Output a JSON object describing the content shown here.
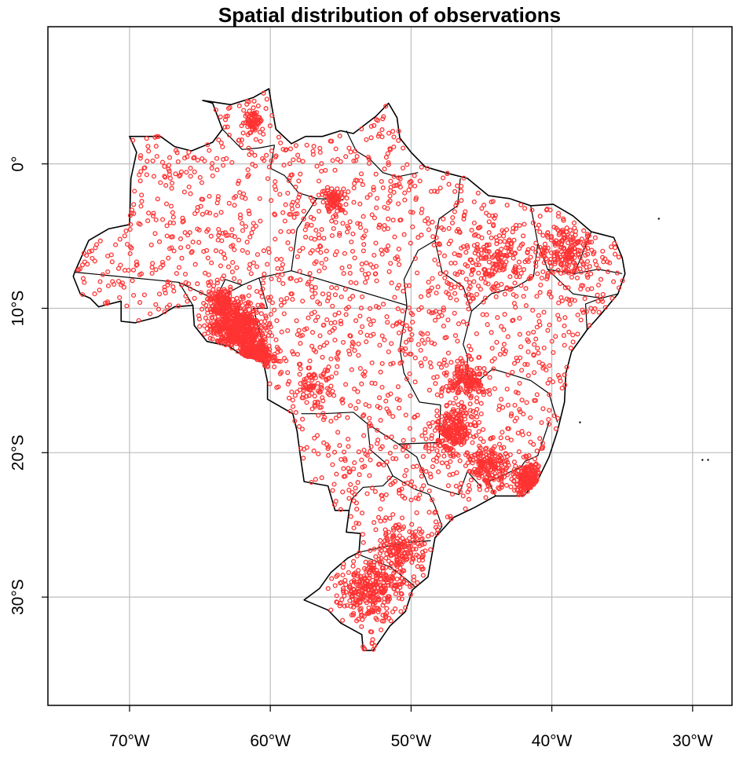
{
  "title": "Spatial distribution of observations",
  "x_ticks": [
    {
      "lon": -70,
      "label": "70°W"
    },
    {
      "lon": -60,
      "label": "60°W"
    },
    {
      "lon": -50,
      "label": "50°W"
    },
    {
      "lon": -40,
      "label": "40°W"
    },
    {
      "lon": -30,
      "label": "30°W"
    }
  ],
  "y_ticks": [
    {
      "lat": 0,
      "label": "0°"
    },
    {
      "lat": -10,
      "label": "10°S"
    },
    {
      "lat": -20,
      "label": "20°S"
    },
    {
      "lat": -30,
      "label": "30°S"
    }
  ],
  "extent": {
    "lon_min": -75.8,
    "lon_max": -27.2,
    "lat_min": -37.5,
    "lat_max": 9.5
  },
  "colors": {
    "points": "#ff3333",
    "border": "#000000",
    "grid": "#bebebe"
  },
  "grid": true,
  "boundary_lonlat": [
    [
      -73.9,
      -7.5
    ],
    [
      -72.9,
      -5.3
    ],
    [
      -71.5,
      -4.5
    ],
    [
      -70.0,
      -4.2
    ],
    [
      -69.9,
      -1.0
    ],
    [
      -69.5,
      0.8
    ],
    [
      -70.0,
      1.9
    ],
    [
      -67.8,
      1.9
    ],
    [
      -66.8,
      1.2
    ],
    [
      -65.6,
      0.9
    ],
    [
      -64.1,
      1.5
    ],
    [
      -63.4,
      2.4
    ],
    [
      -64.1,
      4.2
    ],
    [
      -64.8,
      4.4
    ],
    [
      -62.8,
      4.1
    ],
    [
      -61.2,
      4.6
    ],
    [
      -60.1,
      5.2
    ],
    [
      -59.9,
      4.0
    ],
    [
      -59.6,
      2.4
    ],
    [
      -58.5,
      1.4
    ],
    [
      -57.5,
      1.9
    ],
    [
      -56.3,
      1.9
    ],
    [
      -55.0,
      2.3
    ],
    [
      -54.1,
      2.1
    ],
    [
      -52.5,
      3.3
    ],
    [
      -51.6,
      4.2
    ],
    [
      -51.0,
      3.2
    ],
    [
      -50.8,
      1.8
    ],
    [
      -50.0,
      0.8
    ],
    [
      -49.0,
      -0.2
    ],
    [
      -47.6,
      -0.6
    ],
    [
      -46.0,
      -1.0
    ],
    [
      -44.5,
      -2.2
    ],
    [
      -43.0,
      -2.4
    ],
    [
      -41.5,
      -2.9
    ],
    [
      -39.9,
      -2.8
    ],
    [
      -38.5,
      -3.6
    ],
    [
      -37.2,
      -4.7
    ],
    [
      -35.6,
      -5.1
    ],
    [
      -35.0,
      -6.5
    ],
    [
      -34.8,
      -7.6
    ],
    [
      -35.3,
      -9.0
    ],
    [
      -36.5,
      -10.4
    ],
    [
      -37.5,
      -11.5
    ],
    [
      -38.6,
      -13.0
    ],
    [
      -39.0,
      -14.5
    ],
    [
      -39.1,
      -16.5
    ],
    [
      -39.6,
      -18.5
    ],
    [
      -40.2,
      -20.3
    ],
    [
      -41.0,
      -21.9
    ],
    [
      -42.0,
      -23.0
    ],
    [
      -44.0,
      -23.0
    ],
    [
      -45.5,
      -23.8
    ],
    [
      -47.0,
      -24.5
    ],
    [
      -48.3,
      -25.9
    ],
    [
      -48.6,
      -27.5
    ],
    [
      -48.8,
      -28.6
    ],
    [
      -49.9,
      -29.5
    ],
    [
      -50.4,
      -31.0
    ],
    [
      -51.5,
      -32.0
    ],
    [
      -52.7,
      -33.7
    ],
    [
      -53.4,
      -33.7
    ],
    [
      -53.5,
      -32.6
    ],
    [
      -55.0,
      -31.8
    ],
    [
      -55.9,
      -30.9
    ],
    [
      -57.6,
      -30.2
    ],
    [
      -56.5,
      -29.4
    ],
    [
      -55.7,
      -28.3
    ],
    [
      -54.5,
      -27.3
    ],
    [
      -53.7,
      -26.9
    ],
    [
      -53.6,
      -25.6
    ],
    [
      -54.6,
      -25.5
    ],
    [
      -54.4,
      -24.0
    ],
    [
      -55.4,
      -24.0
    ],
    [
      -55.9,
      -22.3
    ],
    [
      -57.6,
      -22.0
    ],
    [
      -57.9,
      -20.0
    ],
    [
      -58.1,
      -18.5
    ],
    [
      -58.4,
      -17.3
    ],
    [
      -60.2,
      -16.3
    ],
    [
      -60.2,
      -15.1
    ],
    [
      -60.5,
      -13.7
    ],
    [
      -61.9,
      -13.3
    ],
    [
      -63.0,
      -12.6
    ],
    [
      -64.5,
      -12.3
    ],
    [
      -65.4,
      -11.2
    ],
    [
      -65.5,
      -9.8
    ],
    [
      -66.8,
      -9.9
    ],
    [
      -68.0,
      -10.6
    ],
    [
      -69.6,
      -11.0
    ],
    [
      -70.6,
      -10.9
    ],
    [
      -70.6,
      -9.5
    ],
    [
      -72.2,
      -9.9
    ],
    [
      -72.8,
      -9.3
    ],
    [
      -73.5,
      -9.0
    ],
    [
      -74.0,
      -7.8
    ],
    [
      -73.9,
      -7.5
    ]
  ],
  "state_lines_lonlat": [
    [
      [
        -73.9,
        -7.5
      ],
      [
        -66.5,
        -8.2
      ],
      [
        -63.9,
        -9.4
      ],
      [
        -62.0,
        -8.4
      ],
      [
        -60.8,
        -7.9
      ],
      [
        -58.5,
        -7.4
      ]
    ],
    [
      [
        -66.5,
        -8.2
      ],
      [
        -65.5,
        -9.8
      ]
    ],
    [
      [
        -63.9,
        -9.4
      ],
      [
        -63.2,
        -8.0
      ],
      [
        -62.0,
        -8.4
      ]
    ],
    [
      [
        -60.2,
        -10.0
      ],
      [
        -60.8,
        -7.9
      ]
    ],
    [
      [
        -60.2,
        -13.7
      ],
      [
        -61.2,
        -10.0
      ],
      [
        -60.2,
        -10.0
      ]
    ],
    [
      [
        -58.5,
        -7.4
      ],
      [
        -58.1,
        -4.5
      ],
      [
        -56.7,
        -2.4
      ],
      [
        -54.8,
        -2.5
      ]
    ],
    [
      [
        -63.4,
        2.4
      ],
      [
        -62.0,
        1.0
      ],
      [
        -60.8,
        1.1
      ],
      [
        -59.7,
        1.3
      ]
    ],
    [
      [
        -59.7,
        1.3
      ],
      [
        -60.0,
        -0.3
      ],
      [
        -59.0,
        -0.8
      ],
      [
        -58.0,
        -2.0
      ],
      [
        -56.7,
        -2.4
      ]
    ],
    [
      [
        -54.6,
        2.3
      ],
      [
        -53.9,
        0.9
      ],
      [
        -52.9,
        0.3
      ],
      [
        -52.0,
        -0.6
      ],
      [
        -51.0,
        -0.9
      ],
      [
        -49.5,
        -0.6
      ]
    ],
    [
      [
        -58.5,
        -7.4
      ],
      [
        -50.3,
        -9.8
      ]
    ],
    [
      [
        -50.3,
        -9.8
      ],
      [
        -50.5,
        -8.0
      ],
      [
        -49.5,
        -6.0
      ],
      [
        -48.3,
        -5.3
      ],
      [
        -48.0,
        -3.8
      ],
      [
        -46.7,
        -2.9
      ],
      [
        -46.5,
        -1.0
      ]
    ],
    [
      [
        -50.3,
        -9.8
      ],
      [
        -50.8,
        -12.8
      ],
      [
        -50.5,
        -14.5
      ],
      [
        -49.4,
        -16.5
      ],
      [
        -47.9,
        -16.7
      ]
    ],
    [
      [
        -48.3,
        -5.3
      ],
      [
        -47.8,
        -7.5
      ],
      [
        -46.3,
        -8.5
      ],
      [
        -45.7,
        -10.2
      ],
      [
        -46.3,
        -12.5
      ],
      [
        -46.0,
        -13.3
      ]
    ],
    [
      [
        -45.7,
        -10.2
      ],
      [
        -44.3,
        -9.0
      ],
      [
        -42.5,
        -8.5
      ],
      [
        -41.3,
        -7.8
      ],
      [
        -41.0,
        -5.5
      ],
      [
        -41.5,
        -2.9
      ]
    ],
    [
      [
        -41.0,
        -5.5
      ],
      [
        -40.3,
        -7.3
      ],
      [
        -38.4,
        -7.6
      ]
    ],
    [
      [
        -38.4,
        -7.6
      ],
      [
        -37.2,
        -4.7
      ]
    ],
    [
      [
        -38.4,
        -7.6
      ],
      [
        -36.7,
        -7.3
      ],
      [
        -35.0,
        -7.6
      ]
    ],
    [
      [
        -40.3,
        -7.3
      ],
      [
        -38.5,
        -9.0
      ],
      [
        -36.5,
        -9.3
      ],
      [
        -35.3,
        -9.0
      ]
    ],
    [
      [
        -36.5,
        -9.3
      ],
      [
        -37.6,
        -9.7
      ],
      [
        -37.5,
        -11.5
      ]
    ],
    [
      [
        -46.0,
        -13.3
      ],
      [
        -46.0,
        -14.8
      ],
      [
        -45.2,
        -15.0
      ],
      [
        -44.2,
        -14.2
      ],
      [
        -41.5,
        -15.0
      ],
      [
        -40.2,
        -15.9
      ],
      [
        -39.6,
        -17.9
      ]
    ],
    [
      [
        -47.9,
        -16.7
      ],
      [
        -48.0,
        -19.3
      ],
      [
        -50.9,
        -19.4
      ],
      [
        -53.1,
        -18.0
      ]
    ],
    [
      [
        -53.1,
        -18.0
      ],
      [
        -54.1,
        -17.2
      ],
      [
        -56.3,
        -17.3
      ],
      [
        -57.8,
        -17.3
      ]
    ],
    [
      [
        -53.1,
        -18.0
      ],
      [
        -52.9,
        -19.8
      ],
      [
        -51.7,
        -20.8
      ],
      [
        -51.3,
        -21.6
      ],
      [
        -52.0,
        -22.3
      ],
      [
        -53.4,
        -22.4
      ],
      [
        -54.2,
        -23.2
      ],
      [
        -54.4,
        -24.0
      ]
    ],
    [
      [
        -51.3,
        -21.6
      ],
      [
        -49.8,
        -22.5
      ],
      [
        -48.7,
        -22.9
      ],
      [
        -48.3,
        -23.7
      ],
      [
        -47.8,
        -25.1
      ],
      [
        -48.3,
        -25.9
      ]
    ],
    [
      [
        -45.0,
        -22.4
      ],
      [
        -46.0,
        -21.3
      ],
      [
        -46.6,
        -22.9
      ],
      [
        -47.7,
        -22.6
      ],
      [
        -48.8,
        -22.2
      ],
      [
        -49.6,
        -20.3
      ],
      [
        -50.9,
        -19.4
      ]
    ],
    [
      [
        -44.0,
        -23.0
      ],
      [
        -44.5,
        -22.0
      ],
      [
        -42.2,
        -21.0
      ],
      [
        -41.9,
        -20.6
      ],
      [
        -41.0,
        -20.2
      ],
      [
        -40.2,
        -17.9
      ]
    ],
    [
      [
        -53.7,
        -26.9
      ],
      [
        -51.8,
        -26.5
      ],
      [
        -50.2,
        -26.2
      ],
      [
        -48.6,
        -26.1
      ]
    ],
    [
      [
        -53.6,
        -27.1
      ],
      [
        -51.5,
        -27.9
      ],
      [
        -50.3,
        -28.8
      ],
      [
        -49.7,
        -29.3
      ]
    ]
  ],
  "islands_lonlat": [
    [
      -32.4,
      -3.8
    ],
    [
      -29.3,
      -20.5
    ],
    [
      -28.9,
      -20.5
    ],
    [
      -38.0,
      -17.9
    ]
  ],
  "clusters": [
    {
      "lon": -62.5,
      "lat": -11.3,
      "spread": 1.6,
      "count": 520
    },
    {
      "lon": -61.0,
      "lat": -13.3,
      "spread": 1.0,
      "count": 220
    },
    {
      "lon": -63.5,
      "lat": -9.5,
      "spread": 0.9,
      "count": 120
    },
    {
      "lon": -47.0,
      "lat": -18.5,
      "spread": 1.3,
      "count": 230
    },
    {
      "lon": -46.0,
      "lat": -15.0,
      "spread": 1.2,
      "count": 140
    },
    {
      "lon": -44.5,
      "lat": -21.0,
      "spread": 1.3,
      "count": 170
    },
    {
      "lon": -41.5,
      "lat": -22.0,
      "spread": 1.0,
      "count": 180
    },
    {
      "lon": -53.0,
      "lat": -29.5,
      "spread": 1.8,
      "count": 240
    },
    {
      "lon": -51.0,
      "lat": -27.0,
      "spread": 1.6,
      "count": 160
    },
    {
      "lon": -55.5,
      "lat": -2.5,
      "spread": 0.8,
      "count": 90
    },
    {
      "lon": -61.2,
      "lat": 3.0,
      "spread": 0.6,
      "count": 60
    },
    {
      "lon": -39.0,
      "lat": -6.0,
      "spread": 1.8,
      "count": 170
    },
    {
      "lon": -44.0,
      "lat": -6.5,
      "spread": 2.0,
      "count": 130
    },
    {
      "lon": -57.0,
      "lat": -15.5,
      "spread": 1.2,
      "count": 70
    }
  ],
  "background_points": 1900
}
